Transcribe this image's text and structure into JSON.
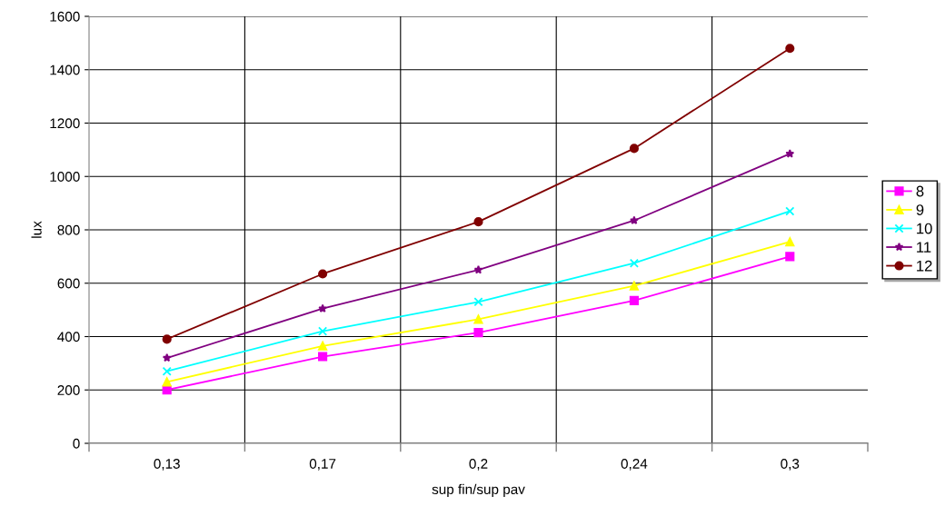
{
  "chart_data": {
    "type": "line",
    "xlabel": "sup fin/sup pav",
    "ylabel": "lux",
    "categories": [
      "0,13",
      "0,17",
      "0,2",
      "0,24",
      "0,3"
    ],
    "series": [
      {
        "name": "8",
        "color": "#ff00ff",
        "marker": "square",
        "values": [
          200,
          325,
          415,
          535,
          700
        ]
      },
      {
        "name": "9",
        "color": "#ffff00",
        "marker": "triangle",
        "values": [
          230,
          365,
          465,
          590,
          755
        ]
      },
      {
        "name": "10",
        "color": "#00ffff",
        "marker": "cross",
        "values": [
          270,
          420,
          530,
          675,
          870
        ]
      },
      {
        "name": "11",
        "color": "#800080",
        "marker": "star",
        "values": [
          320,
          505,
          650,
          835,
          1085
        ]
      },
      {
        "name": "12",
        "color": "#800000",
        "marker": "circle",
        "values": [
          390,
          635,
          830,
          1105,
          1480
        ]
      }
    ],
    "ylim": [
      0,
      1600
    ],
    "yticks": [
      0,
      200,
      400,
      600,
      800,
      1000,
      1200,
      1400,
      1600
    ],
    "grid": true,
    "legend": "right",
    "line_style": "solid"
  }
}
